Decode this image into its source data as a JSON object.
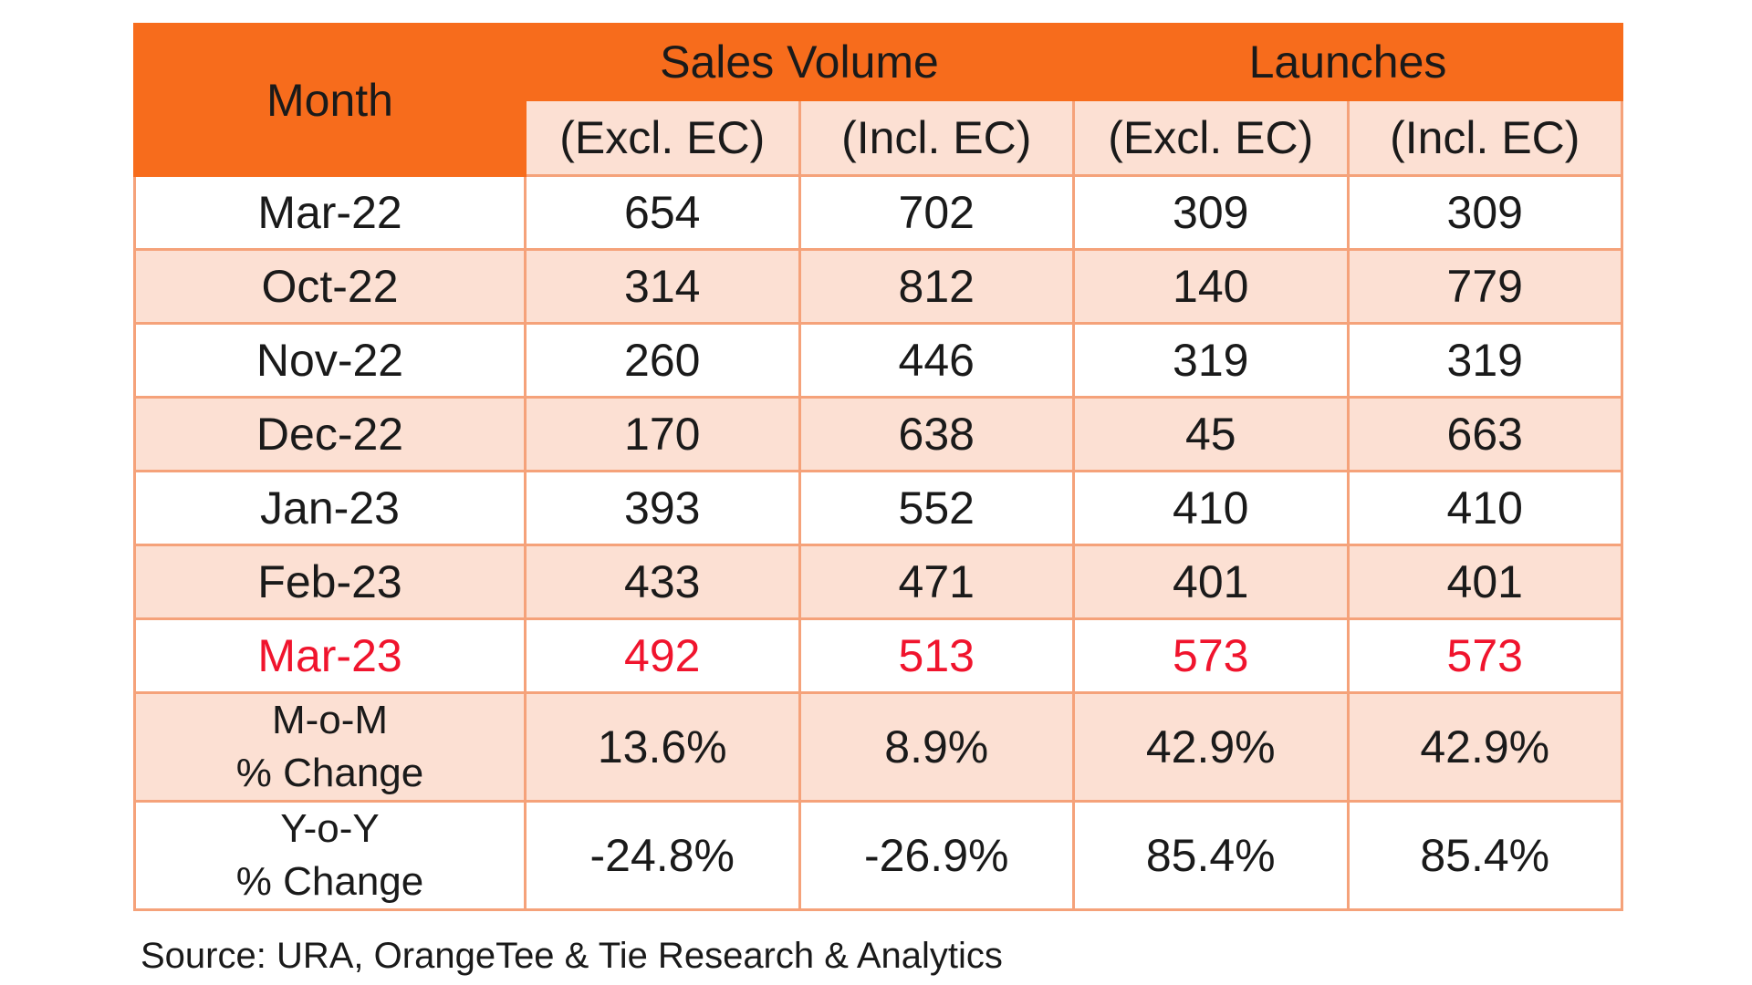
{
  "colors": {
    "header_orange": "#f76c1c",
    "band_peach": "#fce0d3",
    "border_peach": "#f5a27a",
    "highlight_red": "#f0142d"
  },
  "table": {
    "month_header": "Month",
    "group_headers": [
      "Sales Volume",
      "Launches"
    ],
    "sub_headers": [
      "(Excl. EC)",
      "(Incl. EC)",
      "(Excl. EC)",
      "(Incl. EC)"
    ],
    "rows": [
      {
        "month": "Mar-22",
        "values": [
          "654",
          "702",
          "309",
          "309"
        ]
      },
      {
        "month": "Oct-22",
        "values": [
          "314",
          "812",
          "140",
          "779"
        ]
      },
      {
        "month": "Nov-22",
        "values": [
          "260",
          "446",
          "319",
          "319"
        ]
      },
      {
        "month": "Dec-22",
        "values": [
          "170",
          "638",
          "45",
          "663"
        ]
      },
      {
        "month": "Jan-23",
        "values": [
          "393",
          "552",
          "410",
          "410"
        ]
      },
      {
        "month": "Feb-23",
        "values": [
          "433",
          "471",
          "401",
          "401"
        ]
      },
      {
        "month": "Mar-23",
        "values": [
          "492",
          "513",
          "573",
          "573"
        ],
        "highlight": true
      }
    ],
    "change_rows": [
      {
        "label_line1": "M-o-M",
        "label_line2": "% Change",
        "values": [
          "13.6%",
          "8.9%",
          "42.9%",
          "42.9%"
        ]
      },
      {
        "label_line1": "Y-o-Y",
        "label_line2": "% Change",
        "values": [
          "-24.8%",
          "-26.9%",
          "85.4%",
          "85.4%"
        ]
      }
    ]
  },
  "source": "Source: URA, OrangeTee & Tie Research & Analytics",
  "chart_data": {
    "type": "table",
    "columns": [
      "Month",
      "Sales Volume (Excl. EC)",
      "Sales Volume (Incl. EC)",
      "Launches (Excl. EC)",
      "Launches (Incl. EC)"
    ],
    "rows": [
      [
        "Mar-22",
        654,
        702,
        309,
        309
      ],
      [
        "Oct-22",
        314,
        812,
        140,
        779
      ],
      [
        "Nov-22",
        260,
        446,
        319,
        319
      ],
      [
        "Dec-22",
        170,
        638,
        45,
        663
      ],
      [
        "Jan-23",
        393,
        552,
        410,
        410
      ],
      [
        "Feb-23",
        433,
        471,
        401,
        401
      ],
      [
        "Mar-23",
        492,
        513,
        573,
        573
      ]
    ],
    "mom_pct_change": [
      "13.6%",
      "8.9%",
      "42.9%",
      "42.9%"
    ],
    "yoy_pct_change": [
      "-24.8%",
      "-26.9%",
      "85.4%",
      "85.4%"
    ]
  }
}
